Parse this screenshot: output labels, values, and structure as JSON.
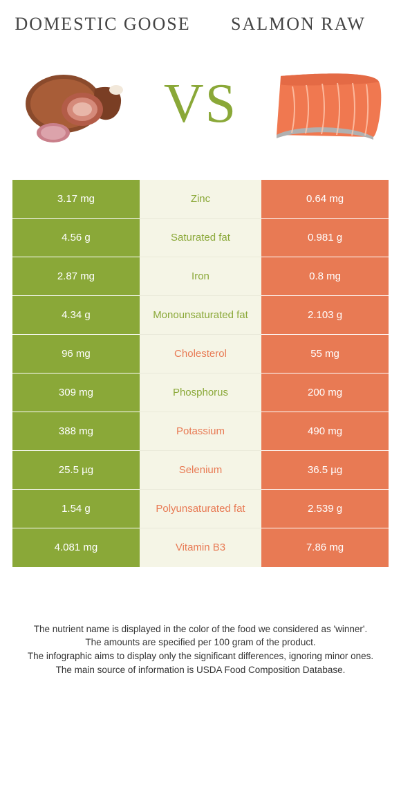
{
  "colors": {
    "green": "#8aa838",
    "orange": "#e87a54",
    "mid_bg": "#f5f5e6",
    "mid_border": "#e9e9d9"
  },
  "left_title": "DOMESTIC GOOSE",
  "right_title": "SALMON RAW",
  "vs": "VS",
  "rows": [
    {
      "left": "3.17 mg",
      "label": "Zinc",
      "right": "0.64 mg",
      "winner": "left"
    },
    {
      "left": "4.56 g",
      "label": "Saturated fat",
      "right": "0.981 g",
      "winner": "left"
    },
    {
      "left": "2.87 mg",
      "label": "Iron",
      "right": "0.8 mg",
      "winner": "left"
    },
    {
      "left": "4.34 g",
      "label": "Monounsaturated fat",
      "right": "2.103 g",
      "winner": "left"
    },
    {
      "left": "96 mg",
      "label": "Cholesterol",
      "right": "55 mg",
      "winner": "right"
    },
    {
      "left": "309 mg",
      "label": "Phosphorus",
      "right": "200 mg",
      "winner": "left"
    },
    {
      "left": "388 mg",
      "label": "Potassium",
      "right": "490 mg",
      "winner": "right"
    },
    {
      "left": "25.5 µg",
      "label": "Selenium",
      "right": "36.5 µg",
      "winner": "right"
    },
    {
      "left": "1.54 g",
      "label": "Polyunsaturated fat",
      "right": "2.539 g",
      "winner": "right"
    },
    {
      "left": "4.081 mg",
      "label": "Vitamin B3",
      "right": "7.86 mg",
      "winner": "right"
    }
  ],
  "footnotes": [
    "The nutrient name is displayed in the color of the food we considered as 'winner'.",
    "The amounts are specified per 100 gram of the product.",
    "The infographic aims to display only the significant differences, ignoring minor ones.",
    "The main source of information is USDA Food Composition Database."
  ]
}
